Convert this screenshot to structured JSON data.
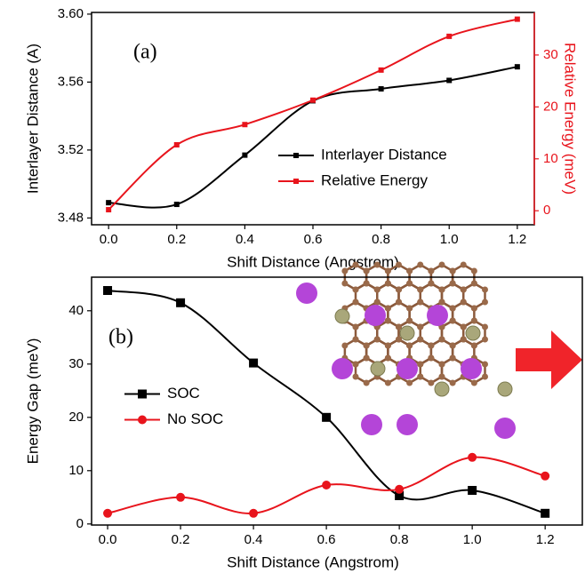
{
  "chart_data": [
    {
      "type": "line",
      "annotation": "(a)",
      "xlabel": "Shift Distance (Angstrom)",
      "ylabel": "Interlayer Distance (A)",
      "y2label": "Relative Energy (meV)",
      "x": [
        0,
        0.2,
        0.4,
        0.6,
        0.8,
        1.0,
        1.2
      ],
      "xlim": [
        -0.05,
        1.25
      ],
      "xticks": [
        {
          "value": 0,
          "label": "0.0"
        },
        0.2,
        0.4,
        0.6,
        0.8,
        {
          "value": 1.0,
          "label": "1.0"
        },
        1.2
      ],
      "ylim": [
        3.476,
        3.601
      ],
      "yticks": [
        3.48,
        3.52,
        3.56,
        {
          "value": 3.6,
          "label": "3.60"
        }
      ],
      "y2lim": [
        -2.7,
        38.2
      ],
      "y2ticks": [
        0,
        10,
        20,
        30
      ],
      "legend": "lower right",
      "series": [
        {
          "name": "Interlayer Distance",
          "color": "#000000",
          "marker": "square",
          "values": [
            3.489,
            3.488,
            3.517,
            3.549,
            3.556,
            3.561,
            3.569
          ]
        },
        {
          "name": "Relative Energy",
          "color": "#e8141c",
          "marker": "square",
          "axis": "y2",
          "values": [
            0.2,
            12.7,
            16.6,
            21.3,
            27.1,
            33.6,
            36.9
          ]
        }
      ]
    },
    {
      "type": "line",
      "annotation": "(b)",
      "xlabel": "Shift Distance (Angstrom)",
      "ylabel": "Energy Gap (meV)",
      "x": [
        0,
        0.2,
        0.4,
        0.6,
        0.8,
        1.0,
        1.2
      ],
      "xlim": [
        -0.044,
        1.302
      ],
      "xticks": [
        {
          "value": 0,
          "label": "0.0"
        },
        0.2,
        0.4,
        0.6,
        0.8,
        {
          "value": 1.0,
          "label": "1.0"
        },
        1.2
      ],
      "ylim": [
        -0.2,
        46.3
      ],
      "yticks": [
        0,
        10,
        20,
        30,
        40
      ],
      "legend": "center left",
      "series": [
        {
          "name": "SOC",
          "color": "#000000",
          "marker": "square",
          "values": [
            43.8,
            41.5,
            30.2,
            20.0,
            5.3,
            6.3,
            2.0
          ]
        },
        {
          "name": "No SOC",
          "color": "#e8141c",
          "marker": "circle",
          "values": [
            2.0,
            5.0,
            2.0,
            7.3,
            6.5,
            12.5,
            9.0
          ]
        }
      ]
    }
  ]
}
